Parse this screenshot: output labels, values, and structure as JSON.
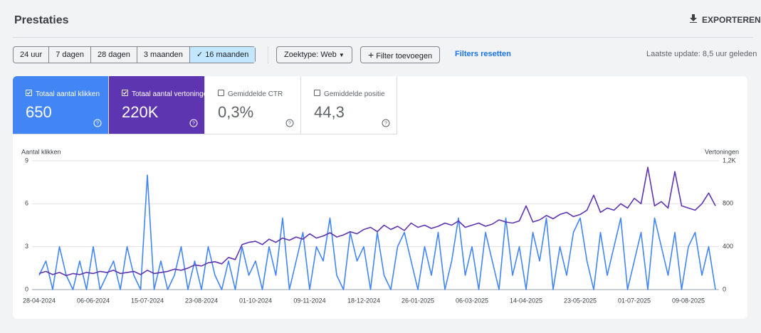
{
  "header": {
    "title": "Prestaties",
    "export": "EXPORTEREN"
  },
  "toolbar": {
    "ranges": [
      "24 uur",
      "7 dagen",
      "28 dagen",
      "3 maanden",
      "16 maanden"
    ],
    "selected_range": 4,
    "search_type": "Zoektype: Web",
    "add_filter": "Filter toevoegen",
    "reset_filters": "Filters resetten",
    "last_update": "Laatste update: 8,5 uur geleden"
  },
  "metrics": [
    {
      "label": "Totaal aantal klikken",
      "value": "650",
      "checked": true,
      "color": "#4285f4"
    },
    {
      "label": "Totaal aantal vertoningen",
      "value": "220K",
      "checked": true,
      "color": "#5e35b1"
    },
    {
      "label": "Gemiddelde CTR",
      "value": "0,3%",
      "checked": false,
      "color": "#00897b"
    },
    {
      "label": "Gemiddelde positie",
      "value": "44,3",
      "checked": false,
      "color": "#e8710a"
    }
  ],
  "chart_data": {
    "type": "line",
    "y_label": "Aantal klikken",
    "y2_label": "Vertoningen",
    "categories": [
      "28-04-2024",
      null,
      null,
      null,
      null,
      null,
      null,
      null,
      "06-06-2024",
      null,
      null,
      null,
      null,
      null,
      null,
      null,
      "15-07-2024",
      null,
      null,
      null,
      null,
      null,
      null,
      null,
      "23-08-2024",
      null,
      null,
      null,
      null,
      null,
      null,
      null,
      "01-10-2024",
      null,
      null,
      null,
      null,
      null,
      null,
      null,
      "09-11-2024",
      null,
      null,
      null,
      null,
      null,
      null,
      null,
      "18-12-2024",
      null,
      null,
      null,
      null,
      null,
      null,
      null,
      "26-01-2025",
      null,
      null,
      null,
      null,
      null,
      null,
      null,
      "06-03-2025",
      null,
      null,
      null,
      null,
      null,
      null,
      null,
      "14-04-2025",
      null,
      null,
      null,
      null,
      null,
      null,
      null,
      "23-05-2025",
      null,
      null,
      null,
      null,
      null,
      null,
      null,
      "01-07-2025",
      null,
      null,
      null,
      null,
      null,
      null,
      null,
      "09-08-2025",
      null,
      null,
      null,
      null
    ],
    "series": [
      {
        "color": "#4285f4",
        "axis": "y",
        "values": [
          1,
          2,
          0,
          3,
          1,
          0,
          2,
          0,
          3,
          0,
          1,
          2,
          0,
          3,
          1,
          0,
          8,
          0,
          2,
          0,
          1,
          3,
          0,
          2,
          0,
          3,
          1,
          0,
          2,
          0,
          3,
          1,
          2,
          0,
          3,
          1,
          5,
          0,
          2,
          4,
          0,
          3,
          2,
          5,
          1,
          0,
          4,
          2,
          3,
          0,
          4,
          1,
          0,
          3,
          4,
          2,
          0,
          3,
          1,
          4,
          0,
          2,
          5,
          1,
          3,
          0,
          4,
          2,
          0,
          5,
          1,
          3,
          0,
          4,
          2,
          5,
          0,
          3,
          1,
          4,
          5,
          2,
          0,
          4,
          1,
          3,
          5,
          0,
          2,
          4,
          0,
          5,
          3,
          1,
          4,
          0,
          3,
          4,
          1,
          3,
          0
        ]
      },
      {
        "color": "#5e35b1",
        "axis": "y2",
        "values": [
          150,
          170,
          140,
          160,
          130,
          150,
          140,
          160,
          150,
          170,
          160,
          180,
          150,
          160,
          170,
          140,
          180,
          150,
          160,
          170,
          190,
          180,
          200,
          230,
          220,
          250,
          260,
          240,
          300,
          280,
          420,
          440,
          450,
          420,
          470,
          440,
          480,
          460,
          490,
          470,
          520,
          480,
          500,
          530,
          490,
          510,
          540,
          520,
          560,
          580,
          540,
          600,
          560,
          590,
          550,
          620,
          580,
          600,
          570,
          590,
          620,
          600,
          640,
          580,
          600,
          620,
          590,
          610,
          650,
          630,
          620,
          640,
          780,
          630,
          650,
          690,
          660,
          700,
          720,
          680,
          700,
          740,
          880,
          720,
          760,
          740,
          800,
          760,
          850,
          800,
          1140,
          780,
          820,
          760,
          1100,
          780,
          760,
          740,
          800,
          900,
          780
        ]
      }
    ],
    "ylim": [
      0,
      9
    ],
    "yticks": [
      0,
      3,
      6,
      9
    ],
    "y2lim": [
      0,
      1200
    ],
    "y2ticks": [
      0,
      400,
      800,
      {
        "value": 1200,
        "label": "1,2K"
      }
    ],
    "grid": true
  }
}
